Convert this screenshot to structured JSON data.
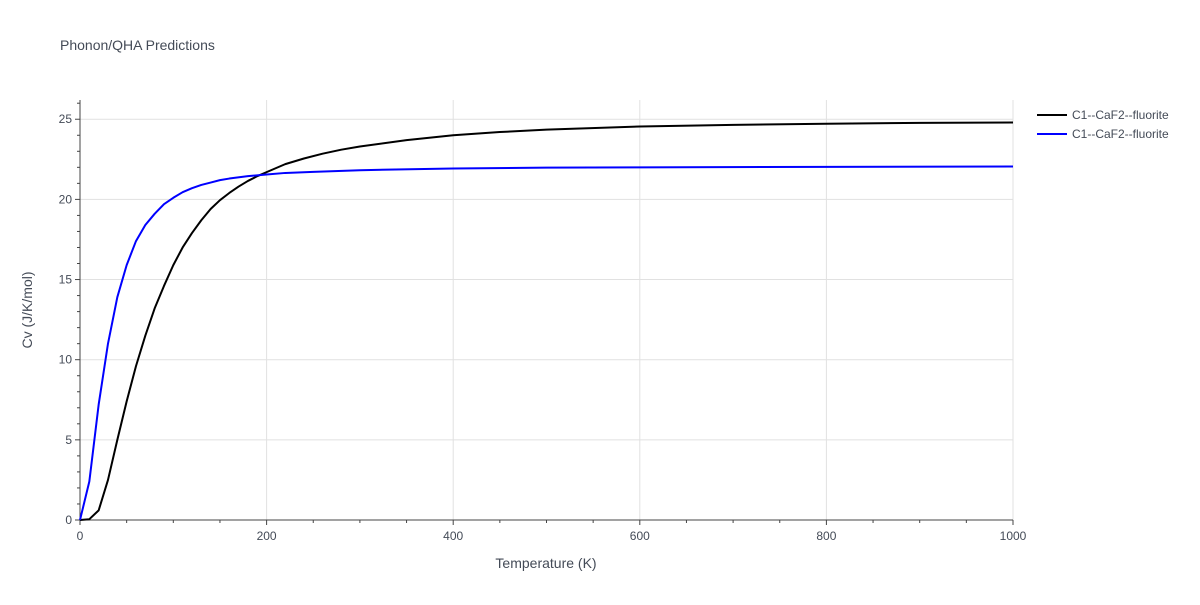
{
  "chart_data": {
    "type": "line",
    "title": "Phonon/QHA Predictions",
    "xlabel": "Temperature (K)",
    "ylabel": "Cv (J/K/mol)",
    "xlim": [
      0,
      1000
    ],
    "ylim": [
      0,
      26.2
    ],
    "x_ticks": [
      0,
      200,
      400,
      600,
      800,
      1000
    ],
    "y_ticks": [
      0,
      5,
      10,
      15,
      20,
      25
    ],
    "grid": true,
    "legend_position": "top-right",
    "series": [
      {
        "name": "C1--CaF2--fluorite",
        "color": "#000000",
        "x": [
          0,
          10,
          20,
          30,
          40,
          50,
          60,
          70,
          80,
          90,
          100,
          110,
          120,
          130,
          140,
          150,
          160,
          170,
          180,
          190,
          200,
          220,
          240,
          260,
          280,
          300,
          350,
          400,
          450,
          500,
          600,
          700,
          800,
          900,
          1000
        ],
        "y": [
          0,
          0.05,
          0.6,
          2.5,
          5.0,
          7.4,
          9.6,
          11.5,
          13.2,
          14.6,
          15.9,
          17.0,
          17.9,
          18.7,
          19.4,
          19.95,
          20.4,
          20.8,
          21.15,
          21.45,
          21.7,
          22.2,
          22.55,
          22.85,
          23.1,
          23.3,
          23.7,
          24.0,
          24.2,
          24.35,
          24.55,
          24.65,
          24.72,
          24.77,
          24.8
        ]
      },
      {
        "name": "C1--CaF2--fluorite",
        "color": "#0000ff",
        "x": [
          0,
          10,
          20,
          30,
          40,
          50,
          60,
          70,
          80,
          90,
          100,
          110,
          120,
          130,
          140,
          150,
          160,
          180,
          200,
          220,
          250,
          300,
          400,
          500,
          600,
          800,
          1000
        ],
        "y": [
          0,
          2.4,
          7.2,
          11.0,
          13.9,
          15.9,
          17.4,
          18.4,
          19.1,
          19.7,
          20.1,
          20.45,
          20.7,
          20.9,
          21.05,
          21.2,
          21.3,
          21.45,
          21.55,
          21.65,
          21.72,
          21.82,
          21.93,
          21.98,
          22.0,
          22.03,
          22.05
        ]
      }
    ]
  }
}
